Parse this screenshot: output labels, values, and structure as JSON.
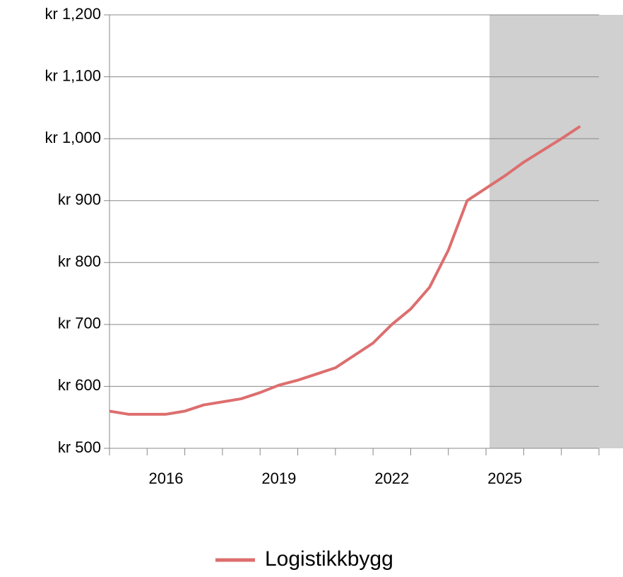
{
  "chart_data": {
    "type": "line",
    "categories": [
      null,
      null,
      null,
      "2016",
      null,
      null,
      null,
      null,
      null,
      "2019",
      null,
      null,
      null,
      null,
      null,
      "2022",
      null,
      null,
      null,
      null,
      null,
      "2025",
      null,
      null,
      null,
      null
    ],
    "series": [
      {
        "name": "Logistikkbygg",
        "color": "#dd6e6e",
        "values": [
          560,
          555,
          555,
          555,
          560,
          570,
          575,
          580,
          590,
          602,
          610,
          620,
          630,
          650,
          670,
          700,
          725,
          760,
          820,
          900,
          920,
          940,
          962,
          981,
          1000,
          1020
        ]
      }
    ],
    "ylim": [
      500,
      1200
    ],
    "yticks": [
      {
        "value": 500,
        "label": "kr 500"
      },
      {
        "value": 600,
        "label": "kr 600"
      },
      {
        "value": 700,
        "label": "kr 700"
      },
      {
        "value": 800,
        "label": "kr 800"
      },
      {
        "value": 900,
        "label": "kr 900"
      },
      {
        "value": 1000,
        "label": "kr 1,000"
      },
      {
        "value": 1100,
        "label": "kr 1,100"
      },
      {
        "value": 1200,
        "label": "kr 1,200"
      }
    ],
    "grid": true,
    "legend": "bottom"
  }
}
